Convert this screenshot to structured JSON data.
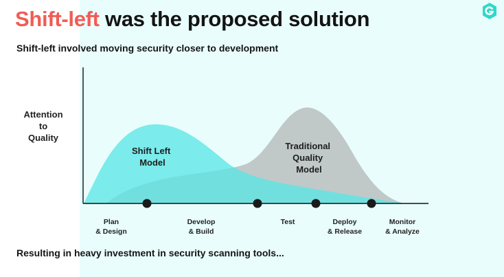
{
  "title": {
    "accent": "Shift-left",
    "rest": " was the proposed solution"
  },
  "subtitle": "Shift-left involved moving security closer to development",
  "y_label": [
    "Attention",
    "to",
    "Quality"
  ],
  "curves": [
    {
      "label_lines": [
        "Shift Left",
        "Model"
      ],
      "color": "#5ce6e6"
    },
    {
      "label_lines": [
        "Traditional",
        "Quality",
        "Model"
      ],
      "color": "#b9bfbd"
    }
  ],
  "stages": [
    {
      "label": "Plan\n& Design"
    },
    {
      "label": "Develop\n& Build"
    },
    {
      "label": "Test"
    },
    {
      "label": "Deploy\n& Release"
    },
    {
      "label": "Monitor\n& Analyze"
    }
  ],
  "footer": "Resulting in heavy investment in security scanning tools...",
  "logo_icon": "g-logo-icon"
}
